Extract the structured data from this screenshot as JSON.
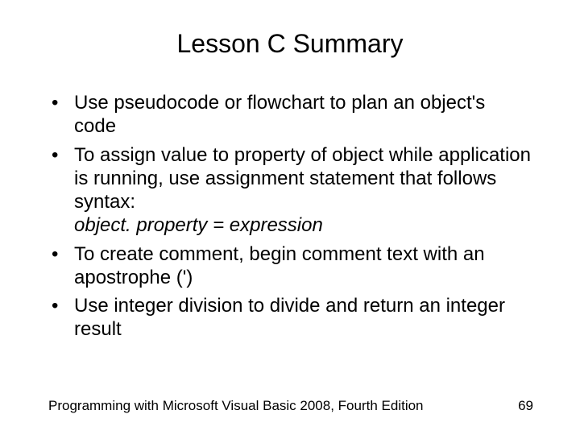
{
  "slide": {
    "title": "Lesson C Summary",
    "bullets": [
      {
        "text": "Use pseudocode or flowchart to plan an object's code"
      },
      {
        "text": "To assign value to property of object while application is running, use assignment statement that follows syntax:",
        "italic_line": "object. property = expression"
      },
      {
        "text": "To create comment, begin comment text with an apostrophe (')"
      },
      {
        "text": "Use integer division to divide and return an integer result"
      }
    ],
    "footer_text": "Programming with Microsoft Visual Basic 2008, Fourth Edition",
    "page_number": "69"
  },
  "style": {
    "background_color": "#ffffff",
    "text_color": "#000000",
    "title_fontsize": 32,
    "body_fontsize": 24,
    "footer_fontsize": 17,
    "font_family": "Arial"
  }
}
